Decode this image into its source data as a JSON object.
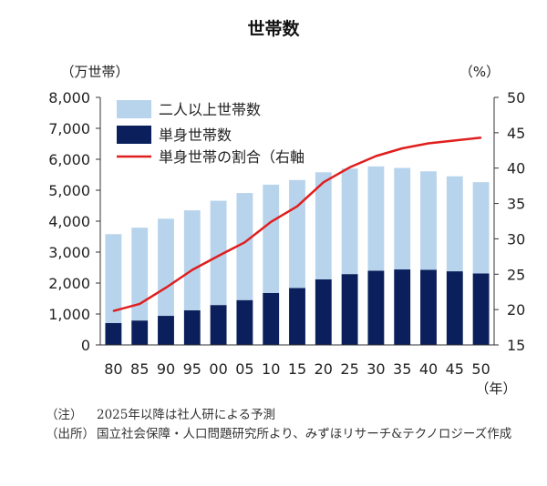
{
  "chart_data": {
    "type": "bar",
    "title": "世帯数",
    "ylabel_left": "（万世帯）",
    "ylabel_right": "（%）",
    "xlabel": "（年）",
    "categories": [
      "80",
      "85",
      "90",
      "95",
      "00",
      "05",
      "10",
      "15",
      "20",
      "25",
      "30",
      "35",
      "40",
      "45",
      "50"
    ],
    "left_axis": {
      "min": 0,
      "max": 8000,
      "ticks": [
        "0",
        "1,000",
        "2,000",
        "3,000",
        "4,000",
        "5,000",
        "6,000",
        "7,000",
        "8,000"
      ]
    },
    "right_axis": {
      "min": 15,
      "max": 50,
      "ticks": [
        "15",
        "20",
        "25",
        "30",
        "35",
        "40",
        "45",
        "50"
      ]
    },
    "series": [
      {
        "name": "二人以上世帯数",
        "kind": "stacked-bar",
        "color": "#b8d4ec",
        "values": [
          2870,
          3000,
          3140,
          3230,
          3370,
          3460,
          3500,
          3490,
          3460,
          3410,
          3370,
          3280,
          3180,
          3070,
          2950
        ]
      },
      {
        "name": "単身世帯数",
        "kind": "stacked-bar",
        "color": "#0b1f5c",
        "values": [
          710,
          790,
          940,
          1120,
          1290,
          1450,
          1680,
          1840,
          2120,
          2290,
          2400,
          2440,
          2430,
          2380,
          2310
        ]
      },
      {
        "name": "単身世帯の割合（右軸",
        "kind": "line",
        "axis": "right",
        "color": "#e01e1e",
        "values": [
          19.8,
          20.8,
          23.1,
          25.6,
          27.6,
          29.5,
          32.4,
          34.6,
          38.0,
          40.1,
          41.7,
          42.8,
          43.5,
          43.9,
          44.3
        ]
      }
    ]
  },
  "notes": [
    {
      "label": "（注）",
      "text": "2025年以降は社人研による予測"
    },
    {
      "label": "（出所）",
      "text": "国立社会保障・人口問題研究所より、みずほリサーチ&テクノロジーズ作成"
    }
  ]
}
